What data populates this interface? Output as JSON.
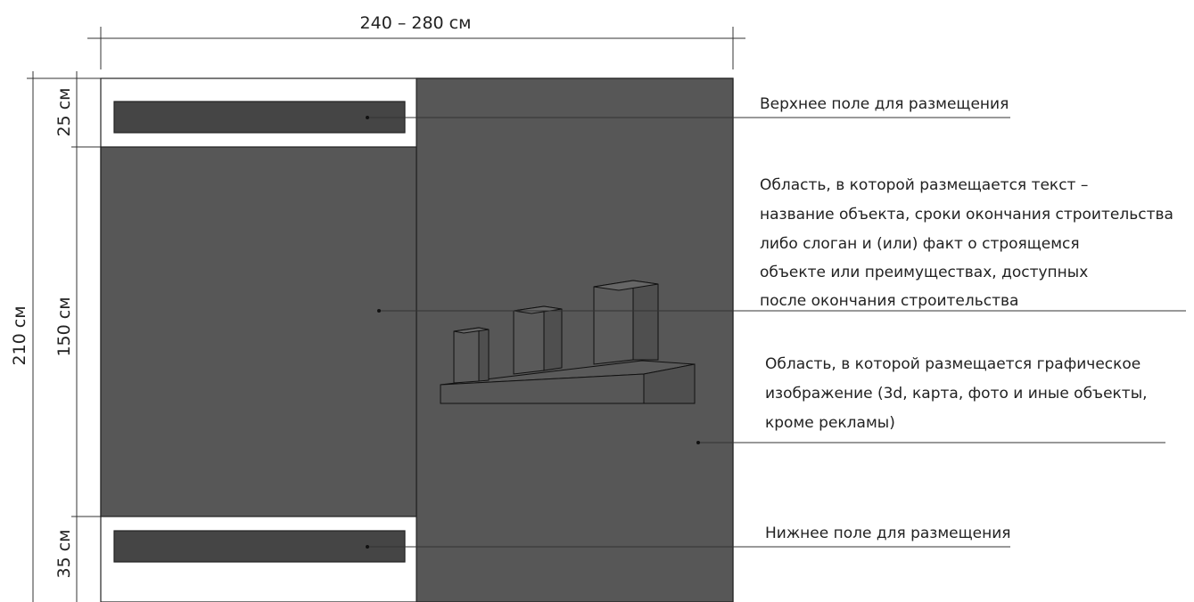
{
  "dimensions": {
    "width": "240 – 280 см",
    "total_height": "210 см",
    "top_field": "25 см",
    "middle_field": "150 см",
    "bottom_field": "35 см"
  },
  "labels": {
    "top_field": "Верхнее поле для размещения",
    "text_area": [
      "Область, в которой размещается текст –",
      "название объекта, сроки окончания строительства",
      "либо слоган и (или) факт о строящемся",
      "объекте или преимуществах, доступных",
      "после окончания строительства"
    ],
    "image_area": [
      "Область, в которой размещается графическое",
      "изображение (3d, карта, фото и иные объекты,",
      "кроме рекламы)"
    ],
    "bottom_field": "Нижнее поле для размещения"
  },
  "colors": {
    "panel_fill": "#575757",
    "bar_fill": "#454545",
    "background": "#ffffff"
  }
}
